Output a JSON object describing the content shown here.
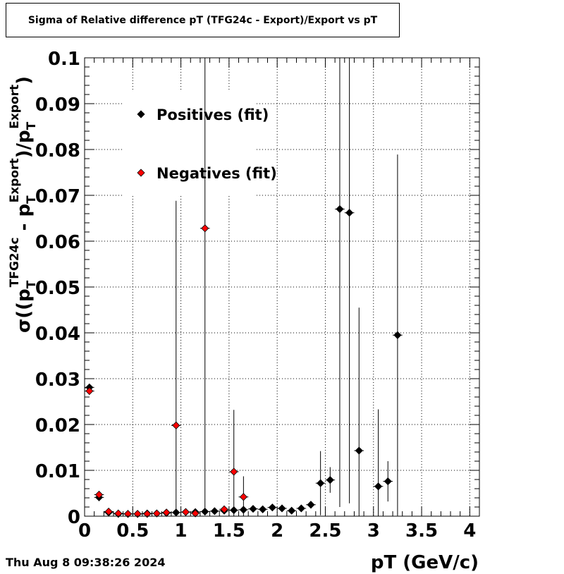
{
  "header": {
    "title": "Sigma of Relative difference pT (TFG24c - Export)/Export vs pT"
  },
  "footer": {
    "timestamp": "Thu Aug  8 09:38:26 2024"
  },
  "chart_data": {
    "type": "scatter",
    "title": "Sigma of Relative difference pT (TFG24c - Export)/Export vs pT",
    "xlabel": "pT (GeV/c)",
    "ylabel": {
      "base": "σ((p",
      "sub1": "T",
      "sup1": "TFG24c",
      "mid": " - p",
      "sub2": "T",
      "sup2": "Export",
      "div": ")/p",
      "sub3": "T",
      "sup3": "Export",
      "end": ")"
    },
    "xlim": [
      0,
      4.1
    ],
    "ylim": [
      0,
      0.1
    ],
    "x_ticks": [
      {
        "v": 0,
        "label": "0"
      },
      {
        "v": 0.5,
        "label": "0.5"
      },
      {
        "v": 1,
        "label": "1"
      },
      {
        "v": 1.5,
        "label": "1.5"
      },
      {
        "v": 2,
        "label": "2"
      },
      {
        "v": 2.5,
        "label": "2.5"
      },
      {
        "v": 3,
        "label": "3"
      },
      {
        "v": 3.5,
        "label": "3.5"
      },
      {
        "v": 4,
        "label": "4"
      }
    ],
    "y_ticks": [
      {
        "v": 0,
        "label": "0"
      },
      {
        "v": 0.01,
        "label": "0.01"
      },
      {
        "v": 0.02,
        "label": "0.02"
      },
      {
        "v": 0.03,
        "label": "0.03"
      },
      {
        "v": 0.04,
        "label": "0.04"
      },
      {
        "v": 0.05,
        "label": "0.05"
      },
      {
        "v": 0.06,
        "label": "0.06"
      },
      {
        "v": 0.07,
        "label": "0.07"
      },
      {
        "v": 0.08,
        "label": "0.08"
      },
      {
        "v": 0.09,
        "label": "0.09"
      },
      {
        "v": 0.1,
        "label": "0.1"
      }
    ],
    "grid": true,
    "legend_position": "top-left",
    "series": [
      {
        "name": "Positives (fit)",
        "color": "#000000",
        "points": [
          {
            "x": 0.05,
            "y": 0.0281,
            "e": 0.0004
          },
          {
            "x": 0.15,
            "y": 0.0041,
            "e": 0.0002
          },
          {
            "x": 0.25,
            "y": 0.0008,
            "e": 0.0001
          },
          {
            "x": 0.35,
            "y": 0.0005,
            "e": 0.0001
          },
          {
            "x": 0.45,
            "y": 0.0005,
            "e": 0.0001
          },
          {
            "x": 0.55,
            "y": 0.0005,
            "e": 0.0001
          },
          {
            "x": 0.65,
            "y": 0.0006,
            "e": 0.0001
          },
          {
            "x": 0.75,
            "y": 0.0006,
            "e": 0.0001
          },
          {
            "x": 0.85,
            "y": 0.0007,
            "e": 0.0001
          },
          {
            "x": 0.95,
            "y": 0.0008,
            "e": 0.0001
          },
          {
            "x": 1.05,
            "y": 0.0009,
            "e": 0.0001
          },
          {
            "x": 1.15,
            "y": 0.0009,
            "e": 0.0001
          },
          {
            "x": 1.25,
            "y": 0.001,
            "e": 0.0001
          },
          {
            "x": 1.35,
            "y": 0.0011,
            "e": 0.0002
          },
          {
            "x": 1.45,
            "y": 0.0012,
            "e": 0.0002
          },
          {
            "x": 1.55,
            "y": 0.0013,
            "e": 0.0002
          },
          {
            "x": 1.65,
            "y": 0.0014,
            "e": 0.0002
          },
          {
            "x": 1.75,
            "y": 0.0016,
            "e": 0.0002
          },
          {
            "x": 1.85,
            "y": 0.0015,
            "e": 0.0002
          },
          {
            "x": 1.95,
            "y": 0.0019,
            "e": 0.0003
          },
          {
            "x": 2.05,
            "y": 0.0017,
            "e": 0.0003
          },
          {
            "x": 2.15,
            "y": 0.0012,
            "e": 0.0003
          },
          {
            "x": 2.25,
            "y": 0.0017,
            "e": 0.0003
          },
          {
            "x": 2.35,
            "y": 0.0025,
            "e": 0.0004
          },
          {
            "x": 2.45,
            "y": 0.0072,
            "e": 0.007
          },
          {
            "x": 2.55,
            "y": 0.0079,
            "e": 0.0028
          },
          {
            "x": 2.65,
            "y": 0.067,
            "e": 0.065
          },
          {
            "x": 2.75,
            "y": 0.0662,
            "e": 0.0634
          },
          {
            "x": 2.85,
            "y": 0.0143,
            "e": 0.0312
          },
          {
            "x": 3.05,
            "y": 0.0065,
            "e": 0.0168
          },
          {
            "x": 3.15,
            "y": 0.0076,
            "e": 0.0044
          },
          {
            "x": 3.25,
            "y": 0.0395,
            "e": 0.0394
          }
        ]
      },
      {
        "name": "Negatives (fit)",
        "color": "#ff0000",
        "points": [
          {
            "x": 0.05,
            "y": 0.0273,
            "e": 0.0004
          },
          {
            "x": 0.15,
            "y": 0.0047,
            "e": 0.0002
          },
          {
            "x": 0.25,
            "y": 0.001,
            "e": 0.0001
          },
          {
            "x": 0.35,
            "y": 0.0006,
            "e": 0.0001
          },
          {
            "x": 0.45,
            "y": 0.0005,
            "e": 0.0001
          },
          {
            "x": 0.55,
            "y": 0.0005,
            "e": 0.0001
          },
          {
            "x": 0.65,
            "y": 0.0005,
            "e": 0.0001
          },
          {
            "x": 0.75,
            "y": 0.0006,
            "e": 0.0001
          },
          {
            "x": 0.85,
            "y": 0.0008,
            "e": 0.0001
          },
          {
            "x": 0.95,
            "y": 0.0198,
            "e": 0.049
          },
          {
            "x": 1.05,
            "y": 0.0009,
            "e": 0.0001
          },
          {
            "x": 1.15,
            "y": 0.0006,
            "e": 0.0001
          },
          {
            "x": 1.25,
            "y": 0.0628,
            "e": 0.061
          },
          {
            "x": 1.45,
            "y": 0.0015,
            "e": 0.0002
          },
          {
            "x": 1.55,
            "y": 0.0097,
            "e": 0.0135
          },
          {
            "x": 1.65,
            "y": 0.0042,
            "e": 0.0045
          }
        ]
      }
    ]
  }
}
